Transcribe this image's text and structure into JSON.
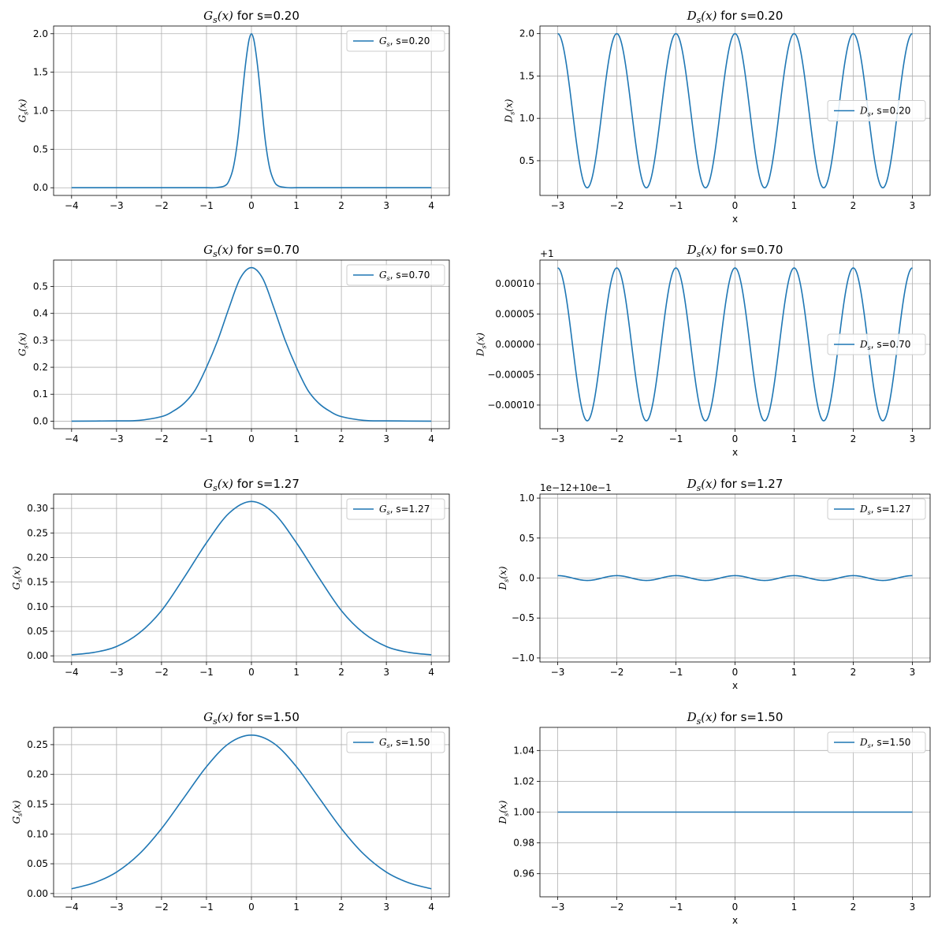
{
  "chart_data": [
    {
      "type": "line",
      "func": "G",
      "s_label": "0.20",
      "title": "for s=0.20",
      "ylabel": "",
      "xlabel": "",
      "xlim": [
        -4.4,
        4.4
      ],
      "ylim": [
        -0.1,
        2.1
      ],
      "xticks": [
        -4,
        -3,
        -2,
        -1,
        0,
        1,
        2,
        3,
        4
      ],
      "xtick_labels": [
        "−4",
        "−3",
        "−2",
        "−1",
        "0",
        "1",
        "2",
        "3",
        "4"
      ],
      "yticks": [
        0.0,
        0.5,
        1.0,
        1.5,
        2.0
      ],
      "ytick_labels": [
        "0.0",
        "0.5",
        "1.0",
        "1.5",
        "2.0"
      ],
      "offset_label": "",
      "legend": "upper-right",
      "series": [
        {
          "name": ", s=0.20",
          "color": "#1f77b4",
          "x": [
            -4,
            -1.5,
            -1,
            -0.8,
            -0.6,
            -0.5,
            -0.4,
            -0.3,
            -0.2,
            -0.15,
            -0.1,
            -0.05,
            0,
            0.05,
            0.1,
            0.15,
            0.2,
            0.3,
            0.4,
            0.5,
            0.6,
            0.8,
            1,
            1.5,
            4
          ],
          "y": [
            0,
            0,
            0,
            0.001,
            0.023,
            0.09,
            0.27,
            0.65,
            1.23,
            1.51,
            1.75,
            1.93,
            2.0,
            1.93,
            1.75,
            1.51,
            1.23,
            0.65,
            0.27,
            0.09,
            0.023,
            0.001,
            0,
            0,
            0
          ]
        }
      ]
    },
    {
      "type": "line",
      "func": "D",
      "s_label": "0.20",
      "title": "for s=0.20",
      "ylabel": "",
      "xlabel": "x",
      "xlim": [
        -3.3,
        3.3
      ],
      "ylim": [
        0.09,
        2.09
      ],
      "xticks": [
        -3,
        -2,
        -1,
        0,
        1,
        2,
        3
      ],
      "xtick_labels": [
        "−3",
        "−2",
        "−1",
        "0",
        "1",
        "2",
        "3"
      ],
      "yticks": [
        0.5,
        1.0,
        1.5,
        2.0
      ],
      "ytick_labels": [
        "0.5",
        "1.0",
        "1.5",
        "2.0"
      ],
      "offset_label": "",
      "legend": "center-right",
      "series": [
        {
          "name": ", s=0.20",
          "color": "#1f77b4",
          "x_range": [
            -3,
            3
          ],
          "periodic": {
            "mean": 1.09,
            "amplitude": 0.91,
            "period": 1
          }
        }
      ]
    },
    {
      "type": "line",
      "func": "G",
      "s_label": "0.70",
      "title": "for s=0.70",
      "ylabel": "",
      "xlabel": "",
      "xlim": [
        -4.4,
        4.4
      ],
      "ylim": [
        -0.028,
        0.598
      ],
      "xticks": [
        -4,
        -3,
        -2,
        -1,
        0,
        1,
        2,
        3,
        4
      ],
      "xtick_labels": [
        "−4",
        "−3",
        "−2",
        "−1",
        "0",
        "1",
        "2",
        "3",
        "4"
      ],
      "yticks": [
        0.0,
        0.1,
        0.2,
        0.3,
        0.4,
        0.5
      ],
      "ytick_labels": [
        "0.0",
        "0.1",
        "0.2",
        "0.3",
        "0.4",
        "0.5"
      ],
      "offset_label": "",
      "legend": "upper-right",
      "series": [
        {
          "name": ", s=0.70",
          "color": "#1f77b4",
          "x": [
            -4,
            -3,
            -2.5,
            -2,
            -1.75,
            -1.5,
            -1.25,
            -1,
            -0.75,
            -0.5,
            -0.25,
            0,
            0.25,
            0.5,
            0.75,
            1,
            1.25,
            1.5,
            1.75,
            2,
            2.5,
            3,
            4
          ],
          "y": [
            0,
            0.001,
            0.003,
            0.017,
            0.036,
            0.066,
            0.116,
            0.2,
            0.3,
            0.42,
            0.53,
            0.57,
            0.53,
            0.42,
            0.3,
            0.2,
            0.116,
            0.066,
            0.036,
            0.017,
            0.003,
            0.001,
            0
          ]
        }
      ]
    },
    {
      "type": "line",
      "func": "D",
      "s_label": "0.70",
      "title": "for s=0.70",
      "ylabel": "",
      "xlabel": "x",
      "xlim": [
        -3.3,
        3.3
      ],
      "ylim": [
        -0.000139,
        0.000139
      ],
      "xticks": [
        -3,
        -2,
        -1,
        0,
        1,
        2,
        3
      ],
      "xtick_labels": [
        "−3",
        "−2",
        "−1",
        "0",
        "1",
        "2",
        "3"
      ],
      "yticks": [
        -0.0001,
        -5e-05,
        0,
        5e-05,
        0.0001
      ],
      "ytick_labels": [
        "−0.00010",
        "−0.00005",
        "0.00000",
        "0.00005",
        "0.00010"
      ],
      "offset_label": "+1",
      "legend": "center-right",
      "series": [
        {
          "name": ", s=0.70",
          "color": "#1f77b4",
          "x_range": [
            -3,
            3
          ],
          "periodic": {
            "mean": 0,
            "amplitude": 0.000126,
            "period": 1
          }
        }
      ]
    },
    {
      "type": "line",
      "func": "G",
      "s_label": "1.27",
      "title": "for s=1.27",
      "ylabel": "",
      "xlabel": "",
      "xlim": [
        -4.4,
        4.4
      ],
      "ylim": [
        -0.0125,
        0.329
      ],
      "xticks": [
        -4,
        -3,
        -2,
        -1,
        0,
        1,
        2,
        3,
        4
      ],
      "xtick_labels": [
        "−4",
        "−3",
        "−2",
        "−1",
        "0",
        "1",
        "2",
        "3",
        "4"
      ],
      "yticks": [
        0.0,
        0.05,
        0.1,
        0.15,
        0.2,
        0.25,
        0.3
      ],
      "ytick_labels": [
        "0.00",
        "0.05",
        "0.10",
        "0.15",
        "0.20",
        "0.25",
        "0.30"
      ],
      "offset_label": "",
      "legend": "upper-right",
      "series": [
        {
          "name": ", s=1.27",
          "color": "#1f77b4",
          "x": [
            -4,
            -3.5,
            -3,
            -2.5,
            -2,
            -1.5,
            -1,
            -0.5,
            0,
            0.5,
            1,
            1.5,
            2,
            2.5,
            3,
            3.5,
            4
          ],
          "y": [
            0.002,
            0.007,
            0.019,
            0.046,
            0.092,
            0.159,
            0.23,
            0.29,
            0.314,
            0.29,
            0.23,
            0.159,
            0.092,
            0.046,
            0.019,
            0.007,
            0.002
          ]
        }
      ]
    },
    {
      "type": "line",
      "func": "D",
      "s_label": "1.27",
      "title": "for s=1.27",
      "ylabel": "",
      "xlabel": "x",
      "xlim": [
        -3.3,
        3.3
      ],
      "ylim": [
        -1.05,
        1.05
      ],
      "xticks": [
        -3,
        -2,
        -1,
        0,
        1,
        2,
        3
      ],
      "xtick_labels": [
        "−3",
        "−2",
        "−1",
        "0",
        "1",
        "2",
        "3"
      ],
      "yticks": [
        -1.0,
        -0.5,
        0.0,
        0.5,
        1.0
      ],
      "ytick_labels": [
        "−1.0",
        "−0.5",
        "0.0",
        "0.5",
        "1.0"
      ],
      "offset_label": "1e−12+10e−1",
      "legend": "upper-right",
      "series": [
        {
          "name": ", s=1.27",
          "color": "#1f77b4",
          "x_range": [
            -3,
            3
          ],
          "periodic": {
            "mean": 0,
            "amplitude": 0.03,
            "period": 1
          }
        }
      ]
    },
    {
      "type": "line",
      "func": "G",
      "s_label": "1.50",
      "title": "for s=1.50",
      "ylabel": "",
      "xlabel": "",
      "xlim": [
        -4.4,
        4.4
      ],
      "ylim": [
        -0.0055,
        0.279
      ],
      "xticks": [
        -4,
        -3,
        -2,
        -1,
        0,
        1,
        2,
        3,
        4
      ],
      "xtick_labels": [
        "−4",
        "−3",
        "−2",
        "−1",
        "0",
        "1",
        "2",
        "3",
        "4"
      ],
      "yticks": [
        0.0,
        0.05,
        0.1,
        0.15,
        0.2,
        0.25
      ],
      "ytick_labels": [
        "0.00",
        "0.05",
        "0.10",
        "0.15",
        "0.20",
        "0.25"
      ],
      "offset_label": "",
      "legend": "upper-right",
      "series": [
        {
          "name": ", s=1.50",
          "color": "#1f77b4",
          "x": [
            -4,
            -3.5,
            -3,
            -2.5,
            -2,
            -1.5,
            -1,
            -0.5,
            0,
            0.5,
            1,
            1.5,
            2,
            2.5,
            3,
            3.5,
            4
          ],
          "y": [
            0.008,
            0.018,
            0.036,
            0.066,
            0.109,
            0.161,
            0.213,
            0.252,
            0.266,
            0.252,
            0.213,
            0.161,
            0.109,
            0.066,
            0.036,
            0.018,
            0.008
          ]
        }
      ]
    },
    {
      "type": "line",
      "func": "D",
      "s_label": "1.50",
      "title": "for s=1.50",
      "ylabel": "",
      "xlabel": "x",
      "xlim": [
        -3.3,
        3.3
      ],
      "ylim": [
        0.945,
        1.055
      ],
      "xticks": [
        -3,
        -2,
        -1,
        0,
        1,
        2,
        3
      ],
      "xtick_labels": [
        "−3",
        "−2",
        "−1",
        "0",
        "1",
        "2",
        "3"
      ],
      "yticks": [
        0.96,
        0.98,
        1.0,
        1.02,
        1.04
      ],
      "ytick_labels": [
        "0.96",
        "0.98",
        "1.00",
        "1.02",
        "1.04"
      ],
      "offset_label": "",
      "legend": "upper-right",
      "series": [
        {
          "name": ", s=1.50",
          "color": "#1f77b4",
          "x_range": [
            -3,
            3
          ],
          "periodic": {
            "mean": 1.0,
            "amplitude": 0,
            "period": 1
          }
        }
      ]
    }
  ]
}
